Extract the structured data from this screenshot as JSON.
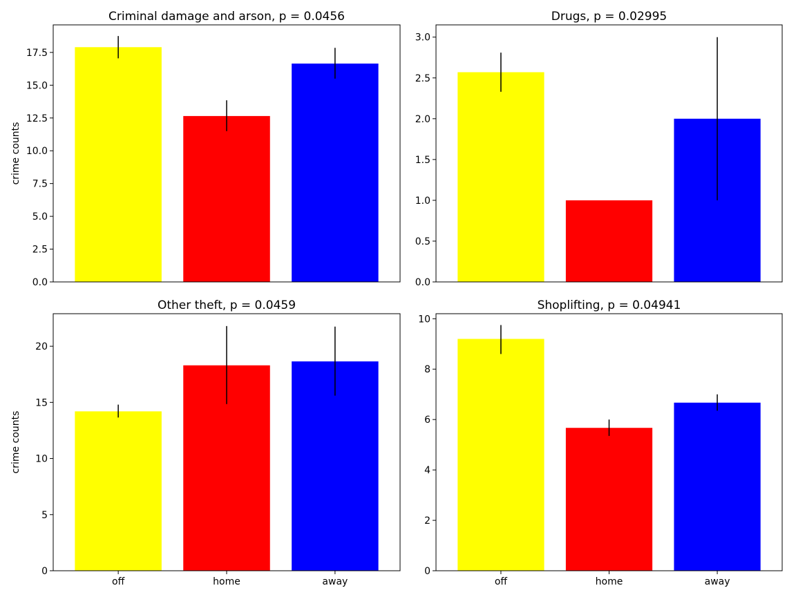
{
  "chart_data": [
    {
      "type": "bar",
      "title": "Criminal damage and arson, p = 0.0456",
      "ylabel": "crime counts",
      "categories": [
        "off",
        "home",
        "away"
      ],
      "values": [
        17.9,
        12.65,
        16.65
      ],
      "error": [
        [
          17.05,
          18.75
        ],
        [
          11.5,
          13.85
        ],
        [
          15.5,
          17.85
        ]
      ],
      "ylim": [
        0,
        19.6
      ],
      "yticks": [
        0,
        2.5,
        5,
        7.5,
        10,
        12.5,
        15,
        17.5
      ],
      "ytick_labels": [
        "0.0",
        "2.5",
        "5.0",
        "7.5",
        "10.0",
        "12.5",
        "15.0",
        "17.5"
      ],
      "show_xticks": false
    },
    {
      "type": "bar",
      "title": "Drugs, p = 0.02995",
      "ylabel": "",
      "categories": [
        "off",
        "home",
        "away"
      ],
      "values": [
        2.57,
        1.0,
        2.0
      ],
      "error": [
        [
          2.33,
          2.81
        ],
        null,
        [
          1.0,
          3.0
        ]
      ],
      "ylim": [
        0,
        3.15
      ],
      "yticks": [
        0,
        0.5,
        1,
        1.5,
        2,
        2.5,
        3
      ],
      "ytick_labels": [
        "0.0",
        "0.5",
        "1.0",
        "1.5",
        "2.0",
        "2.5",
        "3.0"
      ],
      "show_xticks": false
    },
    {
      "type": "bar",
      "title": "Other theft, p = 0.0459",
      "ylabel": "crime counts",
      "categories": [
        "off",
        "home",
        "away"
      ],
      "values": [
        14.2,
        18.3,
        18.65
      ],
      "error": [
        [
          13.65,
          14.8
        ],
        [
          14.85,
          21.8
        ],
        [
          15.6,
          21.75
        ]
      ],
      "ylim": [
        0,
        22.9
      ],
      "yticks": [
        0,
        5,
        10,
        15,
        20
      ],
      "ytick_labels": [
        "0",
        "5",
        "10",
        "15",
        "20"
      ],
      "show_xticks": true
    },
    {
      "type": "bar",
      "title": "Shoplifting, p = 0.04941",
      "ylabel": "",
      "categories": [
        "off",
        "home",
        "away"
      ],
      "values": [
        9.2,
        5.67,
        6.67
      ],
      "error": [
        [
          8.6,
          9.75
        ],
        [
          5.35,
          6.0
        ],
        [
          6.35,
          7.0
        ]
      ],
      "ylim": [
        0,
        10.2
      ],
      "yticks": [
        0,
        2,
        4,
        6,
        8,
        10
      ],
      "ytick_labels": [
        "0",
        "2",
        "4",
        "6",
        "8",
        "10"
      ],
      "show_xticks": true
    }
  ],
  "colors": {
    "off": "#ffff00",
    "home": "#ff0000",
    "away": "#0000ff",
    "error_bar": "#000000",
    "axes": "#000000"
  }
}
